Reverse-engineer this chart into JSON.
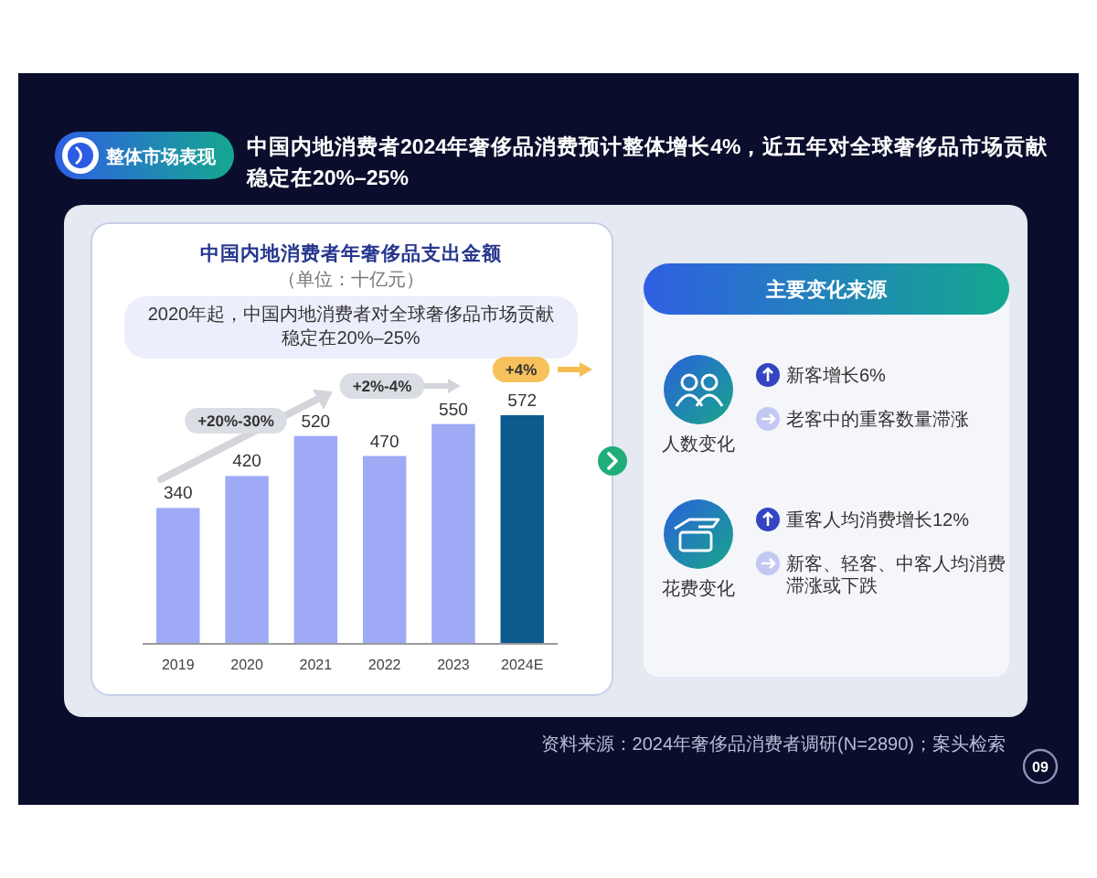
{
  "chart_data": [
    {
      "type": "other",
      "title": "中国内地消费者2024年奢侈品消费预计整体增长4%，近五年对全球奢侈品市场贡献稳定在20%–25%",
      "annotations": [
        "整体市场表现",
        "资料来源：2024年奢侈品消费者调研(N=2890)；案头检索",
        "09"
      ]
    },
    {
      "type": "bar",
      "title": "中国内地消费者年奢侈品支出金额",
      "subtitle": "（单位：十亿元）",
      "categories": [
        "2019",
        "2020",
        "2021",
        "2022",
        "2023",
        "2024E"
      ],
      "values": [
        340,
        420,
        520,
        470,
        550,
        572
      ],
      "colors": [
        "#9eaaf6",
        "#9eaaf6",
        "#9eaaf6",
        "#9eaaf6",
        "#9eaaf6",
        "#0d5a8e"
      ],
      "data_labels": true,
      "annotations": [
        "2020年起，中国内地消费者对全球奢侈品市场贡献稳定在20%–25%",
        "+20%-30%",
        "+2%-4%",
        "+4%"
      ]
    },
    {
      "type": "other",
      "title": "主要变化来源",
      "annotations": [
        "人数变化",
        "新客增长6%",
        "老客中的重客数量滞涨",
        "花费变化",
        "重客人均消费增长12%",
        "新客、轻客、中客人均消费滞涨或下跌"
      ]
    }
  ]
}
